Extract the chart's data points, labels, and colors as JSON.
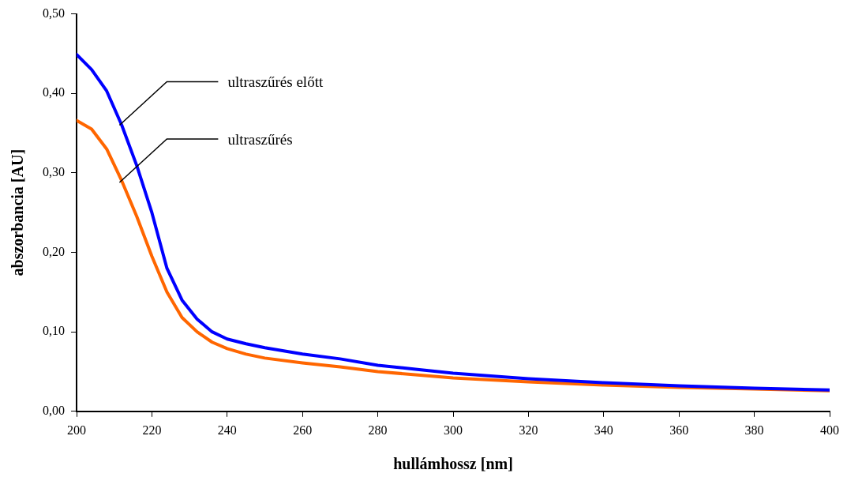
{
  "chart_data": {
    "type": "line",
    "xlabel": "hullámhossz [nm]",
    "ylabel": "abszorbancia [AU]",
    "xlim": [
      200,
      400
    ],
    "xticks": [
      200,
      220,
      240,
      260,
      280,
      300,
      320,
      340,
      360,
      380,
      400
    ],
    "ylim": [
      0,
      0.5
    ],
    "yticks": [
      {
        "value": 0,
        "label": "0,00"
      },
      {
        "value": 0.1,
        "label": "0,10"
      },
      {
        "value": 0.2,
        "label": "0,20"
      },
      {
        "value": 0.3,
        "label": "0,30"
      },
      {
        "value": 0.4,
        "label": "0,40"
      },
      {
        "value": 0.5,
        "label": "0,50"
      }
    ],
    "grid": false,
    "legend": false,
    "marker": "none",
    "line_style": "solid",
    "x": [
      200,
      204,
      208,
      212,
      216,
      220,
      224,
      228,
      232,
      236,
      240,
      245,
      250,
      260,
      270,
      280,
      290,
      300,
      320,
      340,
      360,
      380,
      400
    ],
    "series": [
      {
        "color": "#0000ff",
        "values": [
          0.449,
          0.43,
          0.403,
          0.36,
          0.309,
          0.25,
          0.18,
          0.14,
          0.116,
          0.1,
          0.091,
          0.085,
          0.08,
          0.072,
          0.066,
          0.058,
          0.053,
          0.048,
          0.041,
          0.036,
          0.032,
          0.029,
          0.027
        ]
      },
      {
        "color": "#ff6600",
        "values": [
          0.366,
          0.355,
          0.33,
          0.29,
          0.245,
          0.195,
          0.15,
          0.118,
          0.1,
          0.087,
          0.079,
          0.072,
          0.067,
          0.061,
          0.056,
          0.05,
          0.046,
          0.042,
          0.037,
          0.033,
          0.03,
          0.028,
          0.026
        ]
      }
    ],
    "annotations": [
      {
        "text": "ultraszűrés előtt",
        "x": 211.4,
        "y": 0.36
      },
      {
        "text": "ultraszűrés",
        "x": 211.4,
        "y": 0.288
      }
    ]
  }
}
